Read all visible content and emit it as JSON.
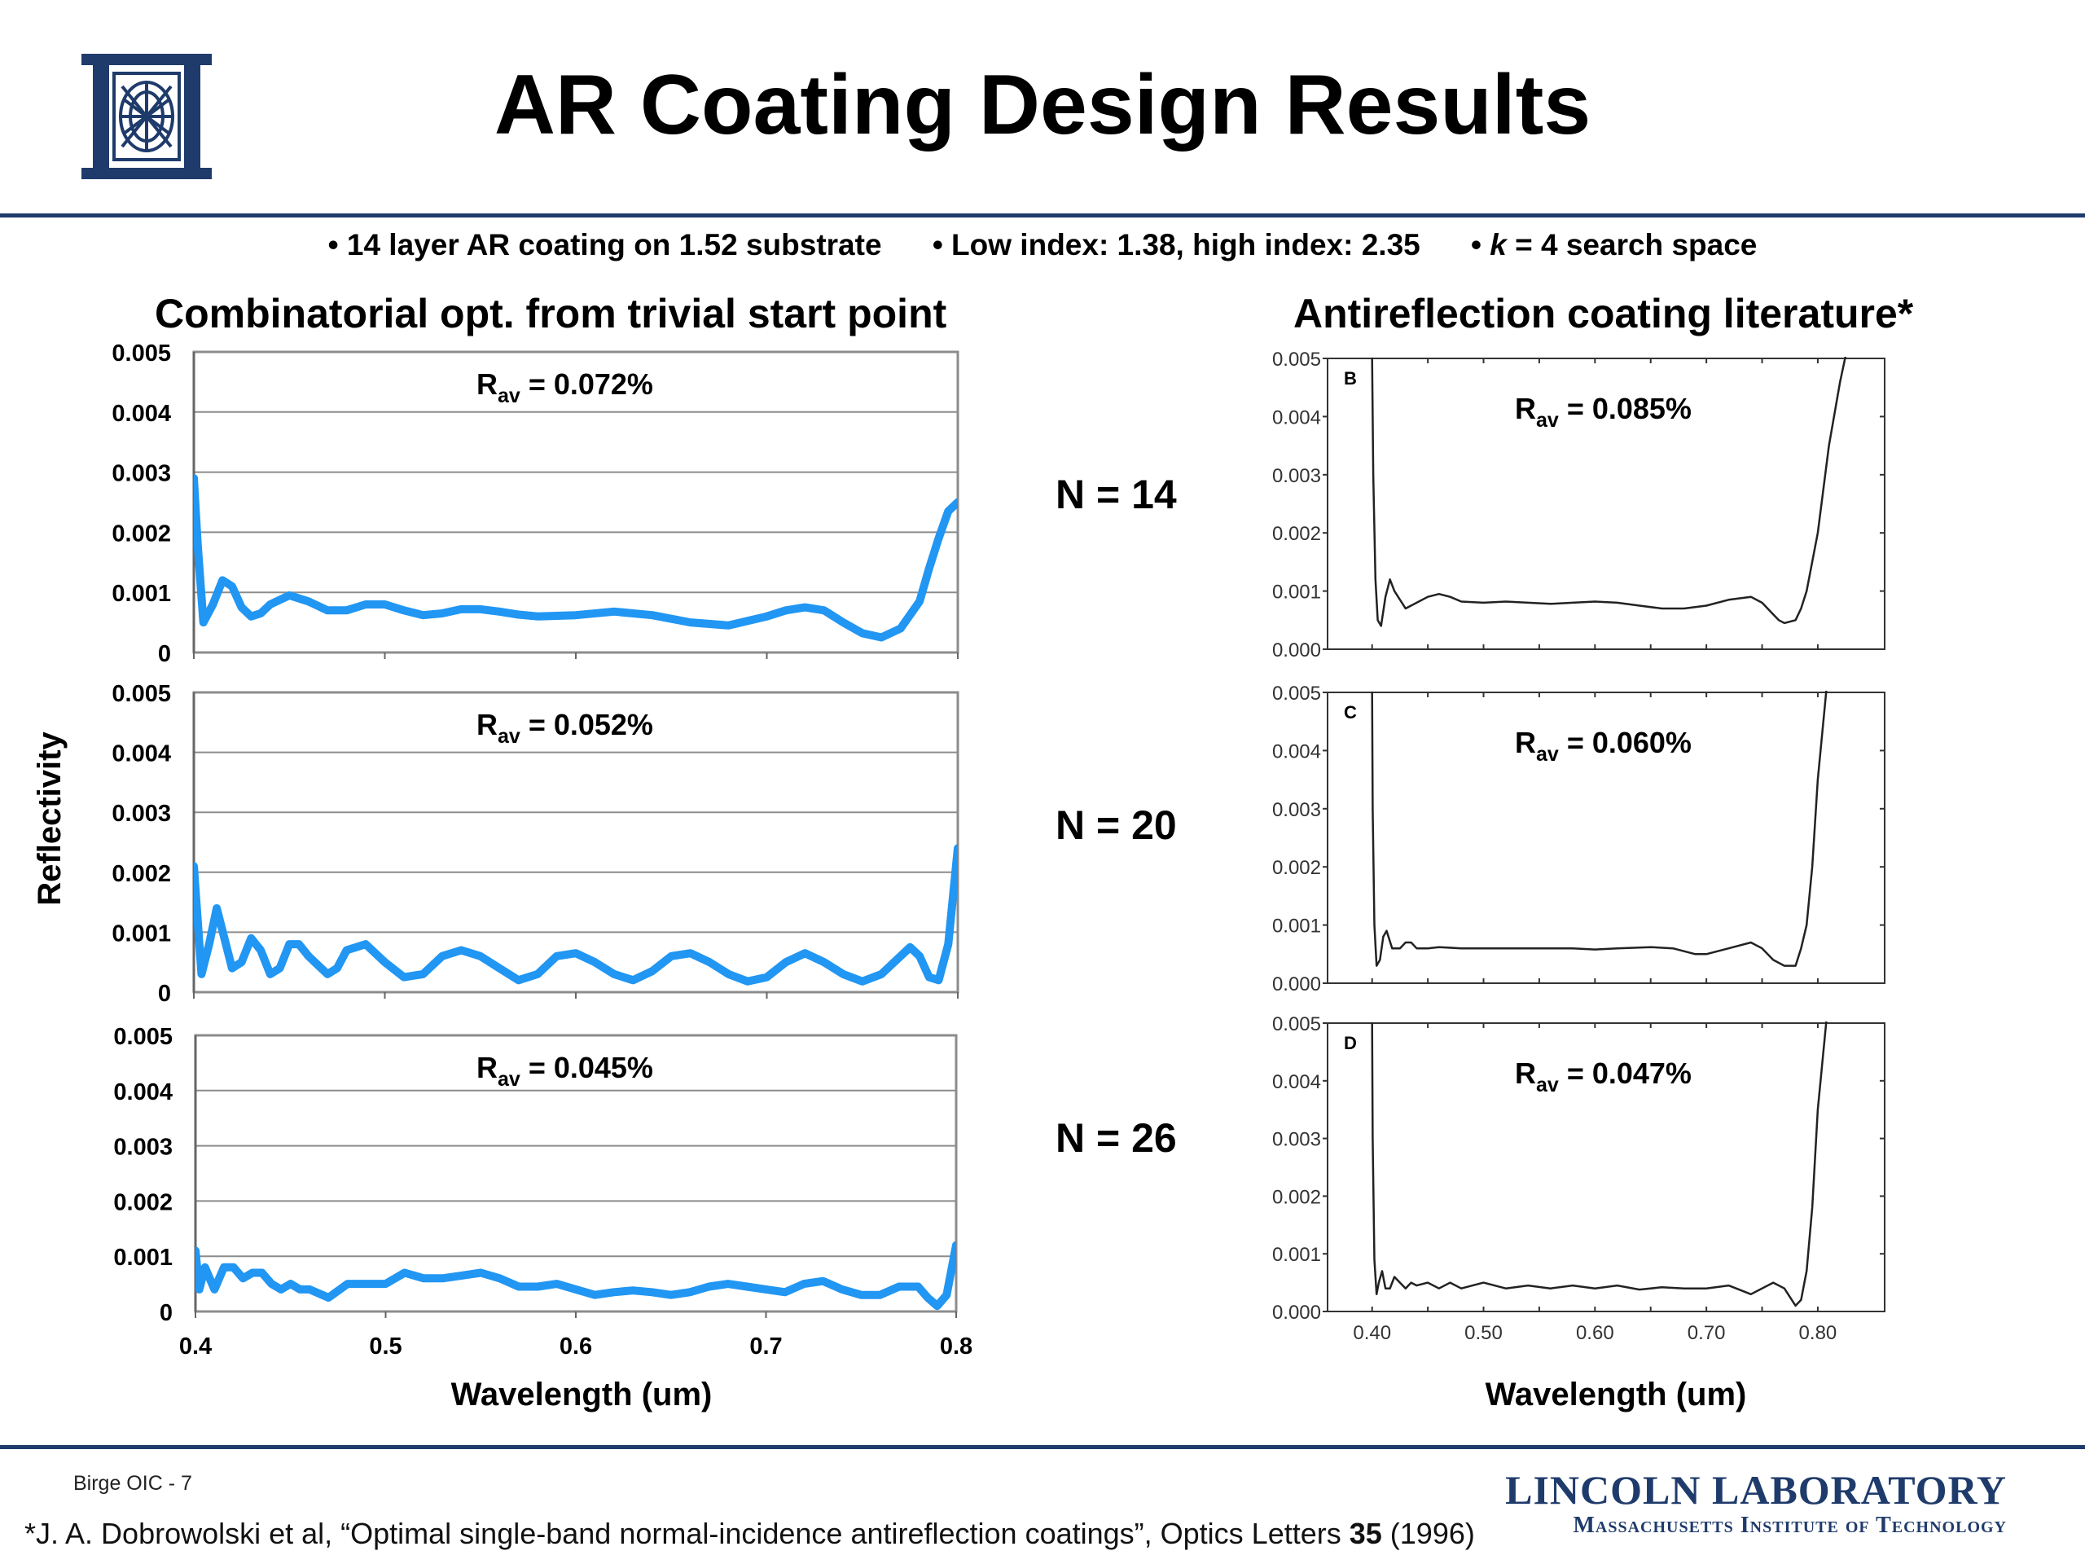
{
  "header": {
    "title": "AR Coating Design Results",
    "bullets": [
      {
        "text": "14 layer AR coating on 1.52 substrate"
      },
      {
        "text": "Low index: 1.38, high index: 2.35"
      },
      {
        "prefix": "",
        "italic": "k",
        "suffix": " = 4 search space"
      }
    ]
  },
  "colors": {
    "brand_navy": "#1f3b6b",
    "series_blue": "#2196f3"
  },
  "left_panel": {
    "title": "Combinatorial opt. from trivial start point",
    "ylabel": "Reflectivity",
    "xlabel": "Wavelength (um)"
  },
  "right_panel": {
    "title": "Antireflection coating literature*",
    "xlabel": "Wavelength (um)"
  },
  "n_labels": [
    "N = 14",
    "N = 20",
    "N = 26"
  ],
  "footer": {
    "slide": "Birge OIC - 7",
    "citation_pre": "*J. A. Dobrowolski et al, “Optimal single-band normal-incidence antireflection coatings”, Optics Letters ",
    "citation_bold": "35",
    "citation_post": " (1996)",
    "lab": "LINCOLN LABORATORY",
    "institute": "Massachusetts Institute of Technology"
  },
  "chart_data": [
    {
      "type": "line",
      "panel": "left",
      "n": 14,
      "annotation": {
        "main": "R",
        "sub": "av",
        "rest": " = 0.072%"
      },
      "ylim": [
        0,
        0.005
      ],
      "xlim": [
        0.4,
        0.8
      ],
      "yticks": [
        "0",
        "0.001",
        "0.002",
        "0.003",
        "0.004",
        "0.005"
      ],
      "xticks": [],
      "grid": true,
      "series": [
        {
          "x": [
            0.4,
            0.402,
            0.405,
            0.41,
            0.415,
            0.42,
            0.425,
            0.43,
            0.435,
            0.44,
            0.45,
            0.46,
            0.47,
            0.48,
            0.49,
            0.5,
            0.51,
            0.52,
            0.53,
            0.54,
            0.55,
            0.56,
            0.57,
            0.58,
            0.6,
            0.62,
            0.64,
            0.66,
            0.68,
            0.7,
            0.71,
            0.72,
            0.73,
            0.74,
            0.75,
            0.76,
            0.77,
            0.78,
            0.785,
            0.79,
            0.795,
            0.8
          ],
          "y": [
            0.0029,
            0.0018,
            0.0005,
            0.0008,
            0.0012,
            0.0011,
            0.00075,
            0.0006,
            0.00065,
            0.0008,
            0.00095,
            0.00085,
            0.0007,
            0.0007,
            0.0008,
            0.0008,
            0.0007,
            0.00062,
            0.00065,
            0.00072,
            0.00072,
            0.00068,
            0.00063,
            0.0006,
            0.00062,
            0.00068,
            0.00062,
            0.0005,
            0.00045,
            0.0006,
            0.0007,
            0.00075,
            0.0007,
            0.0005,
            0.00032,
            0.00025,
            0.0004,
            0.00085,
            0.0014,
            0.0019,
            0.00235,
            0.0025
          ]
        }
      ]
    },
    {
      "type": "line",
      "panel": "left",
      "n": 20,
      "annotation": {
        "main": "R",
        "sub": "av",
        "rest": " = 0.052%"
      },
      "ylim": [
        0,
        0.005
      ],
      "xlim": [
        0.4,
        0.8
      ],
      "yticks": [
        "0",
        "0.001",
        "0.002",
        "0.003",
        "0.004",
        "0.005"
      ],
      "xticks": [],
      "grid": true,
      "series": [
        {
          "x": [
            0.4,
            0.402,
            0.404,
            0.408,
            0.412,
            0.416,
            0.42,
            0.425,
            0.43,
            0.435,
            0.44,
            0.445,
            0.45,
            0.455,
            0.46,
            0.47,
            0.475,
            0.48,
            0.49,
            0.5,
            0.51,
            0.52,
            0.53,
            0.54,
            0.55,
            0.56,
            0.57,
            0.58,
            0.59,
            0.6,
            0.61,
            0.62,
            0.63,
            0.64,
            0.65,
            0.66,
            0.67,
            0.68,
            0.69,
            0.7,
            0.71,
            0.72,
            0.73,
            0.74,
            0.75,
            0.76,
            0.77,
            0.775,
            0.78,
            0.785,
            0.79,
            0.795,
            0.8
          ],
          "y": [
            0.0021,
            0.0012,
            0.0003,
            0.0008,
            0.0014,
            0.0009,
            0.0004,
            0.0005,
            0.0009,
            0.0007,
            0.0003,
            0.0004,
            0.0008,
            0.0008,
            0.0006,
            0.0003,
            0.0004,
            0.0007,
            0.0008,
            0.0005,
            0.00025,
            0.0003,
            0.0006,
            0.0007,
            0.0006,
            0.0004,
            0.0002,
            0.0003,
            0.0006,
            0.00065,
            0.0005,
            0.0003,
            0.0002,
            0.00035,
            0.0006,
            0.00065,
            0.0005,
            0.0003,
            0.00018,
            0.00025,
            0.0005,
            0.00065,
            0.0005,
            0.0003,
            0.00018,
            0.0003,
            0.0006,
            0.00075,
            0.0006,
            0.00025,
            0.0002,
            0.0008,
            0.0024
          ]
        }
      ]
    },
    {
      "type": "line",
      "panel": "left",
      "n": 26,
      "annotation": {
        "main": "R",
        "sub": "av",
        "rest": " = 0.045%"
      },
      "ylim": [
        0,
        0.005
      ],
      "xlim": [
        0.4,
        0.8
      ],
      "yticks": [
        "0",
        "0.001",
        "0.002",
        "0.003",
        "0.004",
        "0.005"
      ],
      "xticks": [
        "0.4",
        "0.5",
        "0.6",
        "0.7",
        "0.8"
      ],
      "grid": true,
      "series": [
        {
          "x": [
            0.4,
            0.402,
            0.405,
            0.41,
            0.415,
            0.42,
            0.425,
            0.43,
            0.435,
            0.44,
            0.445,
            0.45,
            0.455,
            0.46,
            0.47,
            0.48,
            0.49,
            0.5,
            0.51,
            0.52,
            0.53,
            0.54,
            0.55,
            0.56,
            0.57,
            0.58,
            0.59,
            0.6,
            0.61,
            0.62,
            0.63,
            0.64,
            0.65,
            0.66,
            0.67,
            0.68,
            0.69,
            0.7,
            0.71,
            0.72,
            0.73,
            0.74,
            0.75,
            0.76,
            0.77,
            0.78,
            0.785,
            0.79,
            0.795,
            0.8
          ],
          "y": [
            0.0011,
            0.0004,
            0.0008,
            0.0004,
            0.0008,
            0.0008,
            0.0006,
            0.0007,
            0.0007,
            0.0005,
            0.0004,
            0.0005,
            0.0004,
            0.0004,
            0.00025,
            0.0005,
            0.0005,
            0.0005,
            0.0007,
            0.0006,
            0.0006,
            0.00065,
            0.0007,
            0.0006,
            0.00045,
            0.00045,
            0.0005,
            0.0004,
            0.0003,
            0.00035,
            0.00038,
            0.00035,
            0.0003,
            0.00035,
            0.00045,
            0.0005,
            0.00045,
            0.0004,
            0.00035,
            0.0005,
            0.00055,
            0.0004,
            0.0003,
            0.0003,
            0.00045,
            0.00045,
            0.00025,
            0.0001,
            0.0003,
            0.0012
          ]
        }
      ]
    },
    {
      "type": "line",
      "panel": "right",
      "n": 14,
      "letter": "B",
      "annotation": {
        "main": "R",
        "sub": "av",
        "rest": " = 0.085%"
      },
      "ylim": [
        0,
        0.005
      ],
      "xlim": [
        0.36,
        0.86
      ],
      "yticks": [
        "0.000",
        "0.001",
        "0.002",
        "0.003",
        "0.004",
        "0.005"
      ],
      "xticks": [],
      "grid": false,
      "series": [
        {
          "x": [
            0.4,
            0.401,
            0.403,
            0.405,
            0.408,
            0.412,
            0.416,
            0.42,
            0.43,
            0.44,
            0.45,
            0.46,
            0.47,
            0.48,
            0.5,
            0.52,
            0.54,
            0.56,
            0.58,
            0.6,
            0.62,
            0.64,
            0.66,
            0.68,
            0.7,
            0.72,
            0.74,
            0.75,
            0.76,
            0.765,
            0.77,
            0.78,
            0.785,
            0.79,
            0.8,
            0.81,
            0.82,
            0.83
          ],
          "y": [
            0.005,
            0.003,
            0.0012,
            0.0005,
            0.0004,
            0.0009,
            0.0012,
            0.001,
            0.0007,
            0.0008,
            0.0009,
            0.00095,
            0.0009,
            0.00082,
            0.0008,
            0.00082,
            0.0008,
            0.00078,
            0.0008,
            0.00082,
            0.0008,
            0.00075,
            0.0007,
            0.0007,
            0.00075,
            0.00085,
            0.0009,
            0.0008,
            0.0006,
            0.0005,
            0.00045,
            0.0005,
            0.0007,
            0.001,
            0.002,
            0.0035,
            0.0046,
            0.0055
          ]
        }
      ]
    },
    {
      "type": "line",
      "panel": "right",
      "n": 20,
      "letter": "C",
      "annotation": {
        "main": "R",
        "sub": "av",
        "rest": " = 0.060%"
      },
      "ylim": [
        0,
        0.005
      ],
      "xlim": [
        0.36,
        0.86
      ],
      "yticks": [
        "0.000",
        "0.001",
        "0.002",
        "0.003",
        "0.004",
        "0.005"
      ],
      "xticks": [],
      "grid": false,
      "series": [
        {
          "x": [
            0.4,
            0.4005,
            0.402,
            0.404,
            0.407,
            0.41,
            0.413,
            0.418,
            0.425,
            0.43,
            0.435,
            0.44,
            0.45,
            0.46,
            0.48,
            0.5,
            0.52,
            0.55,
            0.58,
            0.6,
            0.62,
            0.65,
            0.67,
            0.69,
            0.7,
            0.72,
            0.74,
            0.75,
            0.76,
            0.77,
            0.78,
            0.785,
            0.79,
            0.795,
            0.8,
            0.81
          ],
          "y": [
            0.005,
            0.003,
            0.001,
            0.0003,
            0.0004,
            0.0008,
            0.0009,
            0.0006,
            0.0006,
            0.0007,
            0.0007,
            0.0006,
            0.0006,
            0.00062,
            0.0006,
            0.0006,
            0.0006,
            0.0006,
            0.0006,
            0.00058,
            0.0006,
            0.00062,
            0.0006,
            0.0005,
            0.0005,
            0.0006,
            0.0007,
            0.0006,
            0.0004,
            0.0003,
            0.0003,
            0.0006,
            0.001,
            0.002,
            0.0035,
            0.0055
          ]
        }
      ]
    },
    {
      "type": "line",
      "panel": "right",
      "n": 26,
      "letter": "D",
      "annotation": {
        "main": "R",
        "sub": "av",
        "rest": " = 0.047%"
      },
      "ylim": [
        0,
        0.005
      ],
      "xlim": [
        0.36,
        0.86
      ],
      "yticks": [
        "0.000",
        "0.001",
        "0.002",
        "0.003",
        "0.004",
        "0.005"
      ],
      "xticks": [
        "0.40",
        "0.50",
        "0.60",
        "0.70",
        "0.80"
      ],
      "grid": false,
      "series": [
        {
          "x": [
            0.4,
            0.4005,
            0.402,
            0.404,
            0.406,
            0.409,
            0.412,
            0.416,
            0.42,
            0.425,
            0.43,
            0.435,
            0.44,
            0.45,
            0.46,
            0.47,
            0.48,
            0.5,
            0.52,
            0.54,
            0.56,
            0.58,
            0.6,
            0.62,
            0.64,
            0.66,
            0.68,
            0.7,
            0.72,
            0.74,
            0.75,
            0.76,
            0.77,
            0.78,
            0.785,
            0.79,
            0.795,
            0.8,
            0.81
          ],
          "y": [
            0.005,
            0.003,
            0.0009,
            0.0003,
            0.0005,
            0.0007,
            0.0004,
            0.0004,
            0.0006,
            0.0005,
            0.0004,
            0.0005,
            0.00045,
            0.0005,
            0.0004,
            0.0005,
            0.0004,
            0.0005,
            0.0004,
            0.00045,
            0.0004,
            0.00045,
            0.0004,
            0.00045,
            0.00038,
            0.00042,
            0.0004,
            0.0004,
            0.00045,
            0.0003,
            0.0004,
            0.0005,
            0.0004,
            0.0001,
            0.0002,
            0.0007,
            0.0018,
            0.0035,
            0.0055
          ]
        }
      ]
    }
  ]
}
